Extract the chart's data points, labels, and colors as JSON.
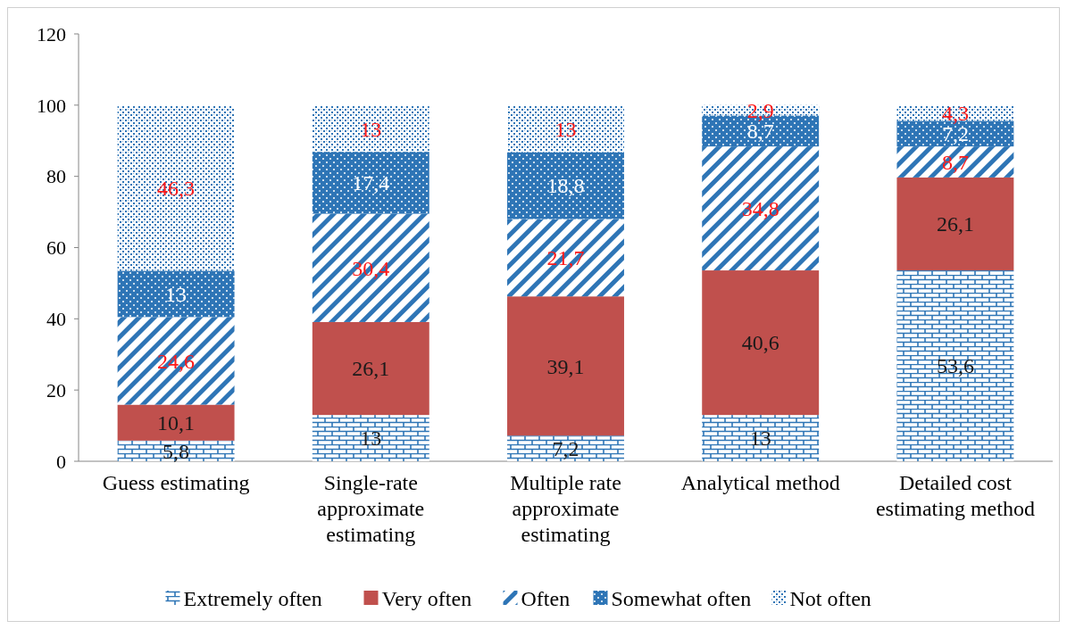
{
  "chart_data": {
    "type": "bar",
    "stacked": true,
    "categories": [
      "Guess estimating",
      "Single-rate approximate estimating",
      "Multiple rate approximate estimating",
      "Analytical method",
      "Detailed cost estimating method"
    ],
    "series": [
      {
        "name": "Extremely  often",
        "color": "#2e75b6",
        "values": [
          5.8,
          13,
          7.2,
          13,
          53.6
        ],
        "value_labels": [
          "5,8",
          "13",
          "7,2",
          "13",
          "53,6"
        ]
      },
      {
        "name": "Very often",
        "color": "#c0504d",
        "values": [
          10.1,
          26.1,
          39.1,
          40.6,
          26.1
        ],
        "value_labels": [
          "10,1",
          "26,1",
          "39,1",
          "40,6",
          "26,1"
        ]
      },
      {
        "name": "Often",
        "color": "#2e75b6",
        "values": [
          24.6,
          30.4,
          21.7,
          34.8,
          8.7
        ],
        "value_labels": [
          "24,6",
          "30,4",
          "21,7",
          "34,8",
          "8,7"
        ]
      },
      {
        "name": "Somewhat often",
        "color": "#2e75b6",
        "values": [
          13,
          17.4,
          18.8,
          8.7,
          7.2
        ],
        "value_labels": [
          "13",
          "17,4",
          "18,8",
          "8,7",
          "7,2"
        ]
      },
      {
        "name": "Not often",
        "color": "#2e75b6",
        "values": [
          46.3,
          13,
          13,
          2.9,
          4.3
        ],
        "value_labels": [
          "46,3",
          "13",
          "13",
          "2,9",
          "4,3"
        ]
      }
    ],
    "ylim": [
      0,
      120
    ],
    "yticks": [
      0,
      20,
      40,
      60,
      80,
      100,
      120
    ],
    "grid": false,
    "legend": "bottom"
  }
}
